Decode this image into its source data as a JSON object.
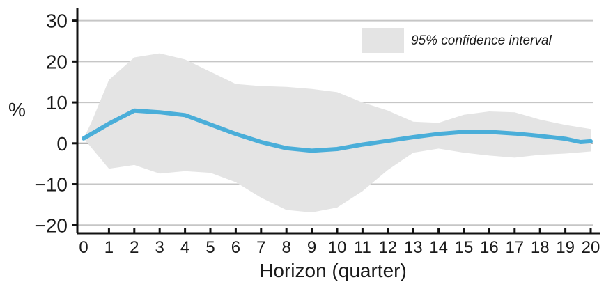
{
  "chart_data": {
    "type": "line",
    "xlabel": "Horizon (quarter)",
    "ylabel": "%",
    "ylim": [
      -22,
      33
    ],
    "xlim": [
      0,
      20
    ],
    "grid": true,
    "legend_position": "top-right",
    "y_ticks": [
      30,
      20,
      10,
      0,
      -10,
      -20
    ],
    "y_tick_labels": [
      "30",
      "20",
      "10",
      "0",
      "−10",
      "−20"
    ],
    "x_ticks": [
      0,
      1,
      2,
      3,
      4,
      5,
      6,
      7,
      8,
      9,
      10,
      11,
      12,
      13,
      14,
      15,
      16,
      17,
      18,
      19,
      20
    ],
    "series": [
      {
        "values": [
          1.2,
          4.8,
          8.0,
          7.6,
          6.9,
          4.6,
          2.3,
          0.3,
          -1.2,
          -1.8,
          -1.4,
          -0.3,
          0.6,
          1.5,
          2.3,
          2.8,
          2.8,
          2.4,
          1.8,
          1.1,
          0.3,
          0.5
        ],
        "x": [
          0,
          1,
          2,
          3,
          4,
          5,
          6,
          7,
          8,
          9,
          10,
          11,
          12,
          13,
          14,
          15,
          16,
          17,
          18,
          19,
          19.6,
          20
        ],
        "color": "#4aaed9"
      }
    ],
    "confidence_band": {
      "label": "95% confidence interval",
      "color": "#e4e4e4",
      "x": [
        0,
        0.3,
        1,
        2,
        3,
        4,
        5,
        6,
        7,
        8,
        9,
        10,
        11,
        12,
        13,
        14,
        15,
        16,
        17,
        18,
        19,
        20
      ],
      "upper": [
        1.2,
        5.0,
        15.5,
        21.0,
        22.0,
        20.5,
        17.5,
        14.5,
        14.0,
        13.8,
        13.3,
        12.5,
        10.0,
        8.0,
        5.3,
        5.0,
        7.0,
        7.8,
        7.6,
        5.8,
        4.5,
        3.5
      ],
      "lower": [
        1.2,
        -1.0,
        -6.2,
        -5.3,
        -7.4,
        -6.8,
        -7.2,
        -9.5,
        -13.3,
        -16.3,
        -16.9,
        -15.7,
        -11.7,
        -6.5,
        -2.3,
        -1.3,
        -2.3,
        -3.0,
        -3.5,
        -2.8,
        -2.5,
        -2.0
      ]
    }
  }
}
